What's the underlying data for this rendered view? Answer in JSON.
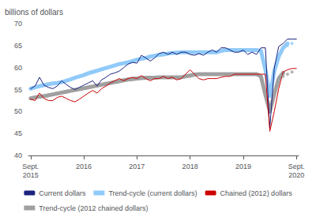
{
  "chart_data": {
    "type": "line",
    "y_label": "billions of dollars",
    "categories": [
      "Sept.\n2015",
      null,
      null,
      null,
      null,
      null,
      null,
      null,
      null,
      null,
      null,
      null,
      "2016",
      null,
      null,
      null,
      null,
      null,
      null,
      null,
      null,
      null,
      null,
      null,
      "2017",
      null,
      null,
      null,
      null,
      null,
      null,
      null,
      null,
      null,
      null,
      null,
      "2018",
      null,
      null,
      null,
      null,
      null,
      null,
      null,
      null,
      null,
      null,
      null,
      "2019",
      null,
      null,
      null,
      null,
      null,
      null,
      null,
      null,
      null,
      null,
      null,
      "Sept.\n2020"
    ],
    "ylim": [
      40,
      70
    ],
    "yticks": [
      40,
      45,
      50,
      55,
      60,
      65,
      70
    ],
    "grid": false,
    "legend": "bottom",
    "series": [
      {
        "name": "Current dollars",
        "type": "line",
        "line_style": "solid",
        "color": "#1a237e",
        "values": [
          55.2,
          55.8,
          57.8,
          56.0,
          55.5,
          55.2,
          55.8,
          57.0,
          56.2,
          55.5,
          55.0,
          55.5,
          56.0,
          56.5,
          57.0,
          55.8,
          57.2,
          57.8,
          58.5,
          58.8,
          59.2,
          60.0,
          60.8,
          61.2,
          61.0,
          62.8,
          62.2,
          61.5,
          62.2,
          63.2,
          63.5,
          63.0,
          63.5,
          63.0,
          63.5,
          63.5,
          63.0,
          62.8,
          63.2,
          62.8,
          63.5,
          64.0,
          63.5,
          64.5,
          64.5,
          64.0,
          63.5,
          63.5,
          64.0,
          63.0,
          63.5,
          63.0,
          64.5,
          64.5,
          46.2,
          59.8,
          64.8,
          65.5,
          66.5,
          66.5,
          66.5
        ]
      },
      {
        "name": "Trend-cycle (current dollars)",
        "type": "line",
        "line_style": "thick",
        "color": "#90caf9",
        "values": [
          55.2,
          55.5,
          55.8,
          56.0,
          56.2,
          56.4,
          56.5,
          56.7,
          57.0,
          57.3,
          57.7,
          58.0,
          58.3,
          58.7,
          59.0,
          59.3,
          59.6,
          59.9,
          60.2,
          60.5,
          60.8,
          61.0,
          61.2,
          61.5,
          61.8,
          62.0,
          62.2,
          62.5,
          62.7,
          62.9,
          63.0,
          63.2,
          63.3,
          63.4,
          63.5,
          63.5,
          63.5,
          63.5,
          63.5,
          63.5,
          63.5,
          63.5,
          63.5,
          63.8,
          64.0,
          64.0,
          64.0,
          64.0,
          64.0,
          64.0,
          64.0,
          64.0,
          63.8,
          59.5,
          53.5,
          59.2,
          62.5,
          64.5,
          65.5,
          null,
          null
        ]
      },
      {
        "name": "Chained (2012) dollars",
        "type": "line",
        "line_style": "solid",
        "color": "#cc0000",
        "values": [
          52.8,
          52.5,
          54.2,
          53.0,
          52.5,
          52.5,
          53.2,
          53.5,
          53.0,
          52.5,
          52.2,
          52.8,
          53.5,
          54.2,
          54.8,
          54.2,
          55.2,
          55.8,
          56.5,
          57.0,
          57.5,
          57.0,
          57.5,
          57.8,
          57.5,
          58.2,
          57.5,
          57.0,
          57.5,
          57.5,
          58.0,
          57.5,
          57.8,
          57.2,
          57.5,
          58.5,
          59.5,
          58.5,
          57.5,
          57.2,
          57.5,
          57.5,
          57.5,
          57.8,
          58.0,
          58.0,
          58.5,
          58.5,
          58.5,
          58.5,
          58.5,
          58.5,
          58.5,
          58.5,
          45.5,
          50.0,
          55.2,
          59.0,
          59.5,
          59.8,
          59.8
        ]
      },
      {
        "name": "Trend-cycle (2012 chained dollars)",
        "type": "line",
        "line_style": "thick",
        "color": "#a0a0a0",
        "values": [
          53.0,
          53.2,
          53.4,
          53.5,
          53.7,
          53.9,
          54.1,
          54.3,
          54.5,
          54.7,
          54.9,
          55.1,
          55.3,
          55.5,
          55.7,
          55.9,
          56.1,
          56.3,
          56.5,
          56.7,
          56.9,
          57.1,
          57.3,
          57.4,
          57.5,
          57.6,
          57.7,
          57.7,
          57.7,
          57.8,
          57.8,
          57.8,
          57.8,
          57.8,
          57.8,
          58.0,
          58.2,
          58.4,
          58.5,
          58.5,
          58.5,
          58.5,
          58.5,
          58.5,
          58.5,
          58.5,
          58.5,
          58.5,
          58.5,
          58.5,
          58.5,
          58.5,
          58.0,
          53.8,
          50.0,
          54.0,
          57.5,
          58.8,
          null,
          null,
          null
        ]
      },
      {
        "type": "scatter",
        "marker": "circle",
        "color": "#90caf9",
        "values": [
          null,
          null,
          null,
          null,
          null,
          null,
          null,
          null,
          null,
          null,
          null,
          null,
          null,
          null,
          null,
          null,
          null,
          null,
          null,
          null,
          null,
          null,
          null,
          null,
          null,
          null,
          null,
          null,
          null,
          null,
          null,
          null,
          null,
          null,
          null,
          null,
          null,
          null,
          null,
          null,
          null,
          null,
          null,
          null,
          null,
          null,
          null,
          null,
          null,
          null,
          null,
          null,
          null,
          null,
          null,
          null,
          null,
          64.5,
          65.0,
          65.5,
          null
        ]
      },
      {
        "type": "scatter",
        "marker": "circle",
        "color": "#a0a0a0",
        "values": [
          null,
          null,
          null,
          null,
          null,
          null,
          null,
          null,
          null,
          null,
          null,
          null,
          null,
          null,
          null,
          null,
          null,
          null,
          null,
          null,
          null,
          null,
          null,
          null,
          null,
          null,
          null,
          null,
          null,
          null,
          null,
          null,
          null,
          null,
          null,
          null,
          null,
          null,
          null,
          null,
          null,
          null,
          null,
          null,
          null,
          null,
          null,
          null,
          null,
          null,
          null,
          null,
          null,
          null,
          null,
          null,
          null,
          58.0,
          58.5,
          59.0,
          null
        ]
      }
    ]
  }
}
